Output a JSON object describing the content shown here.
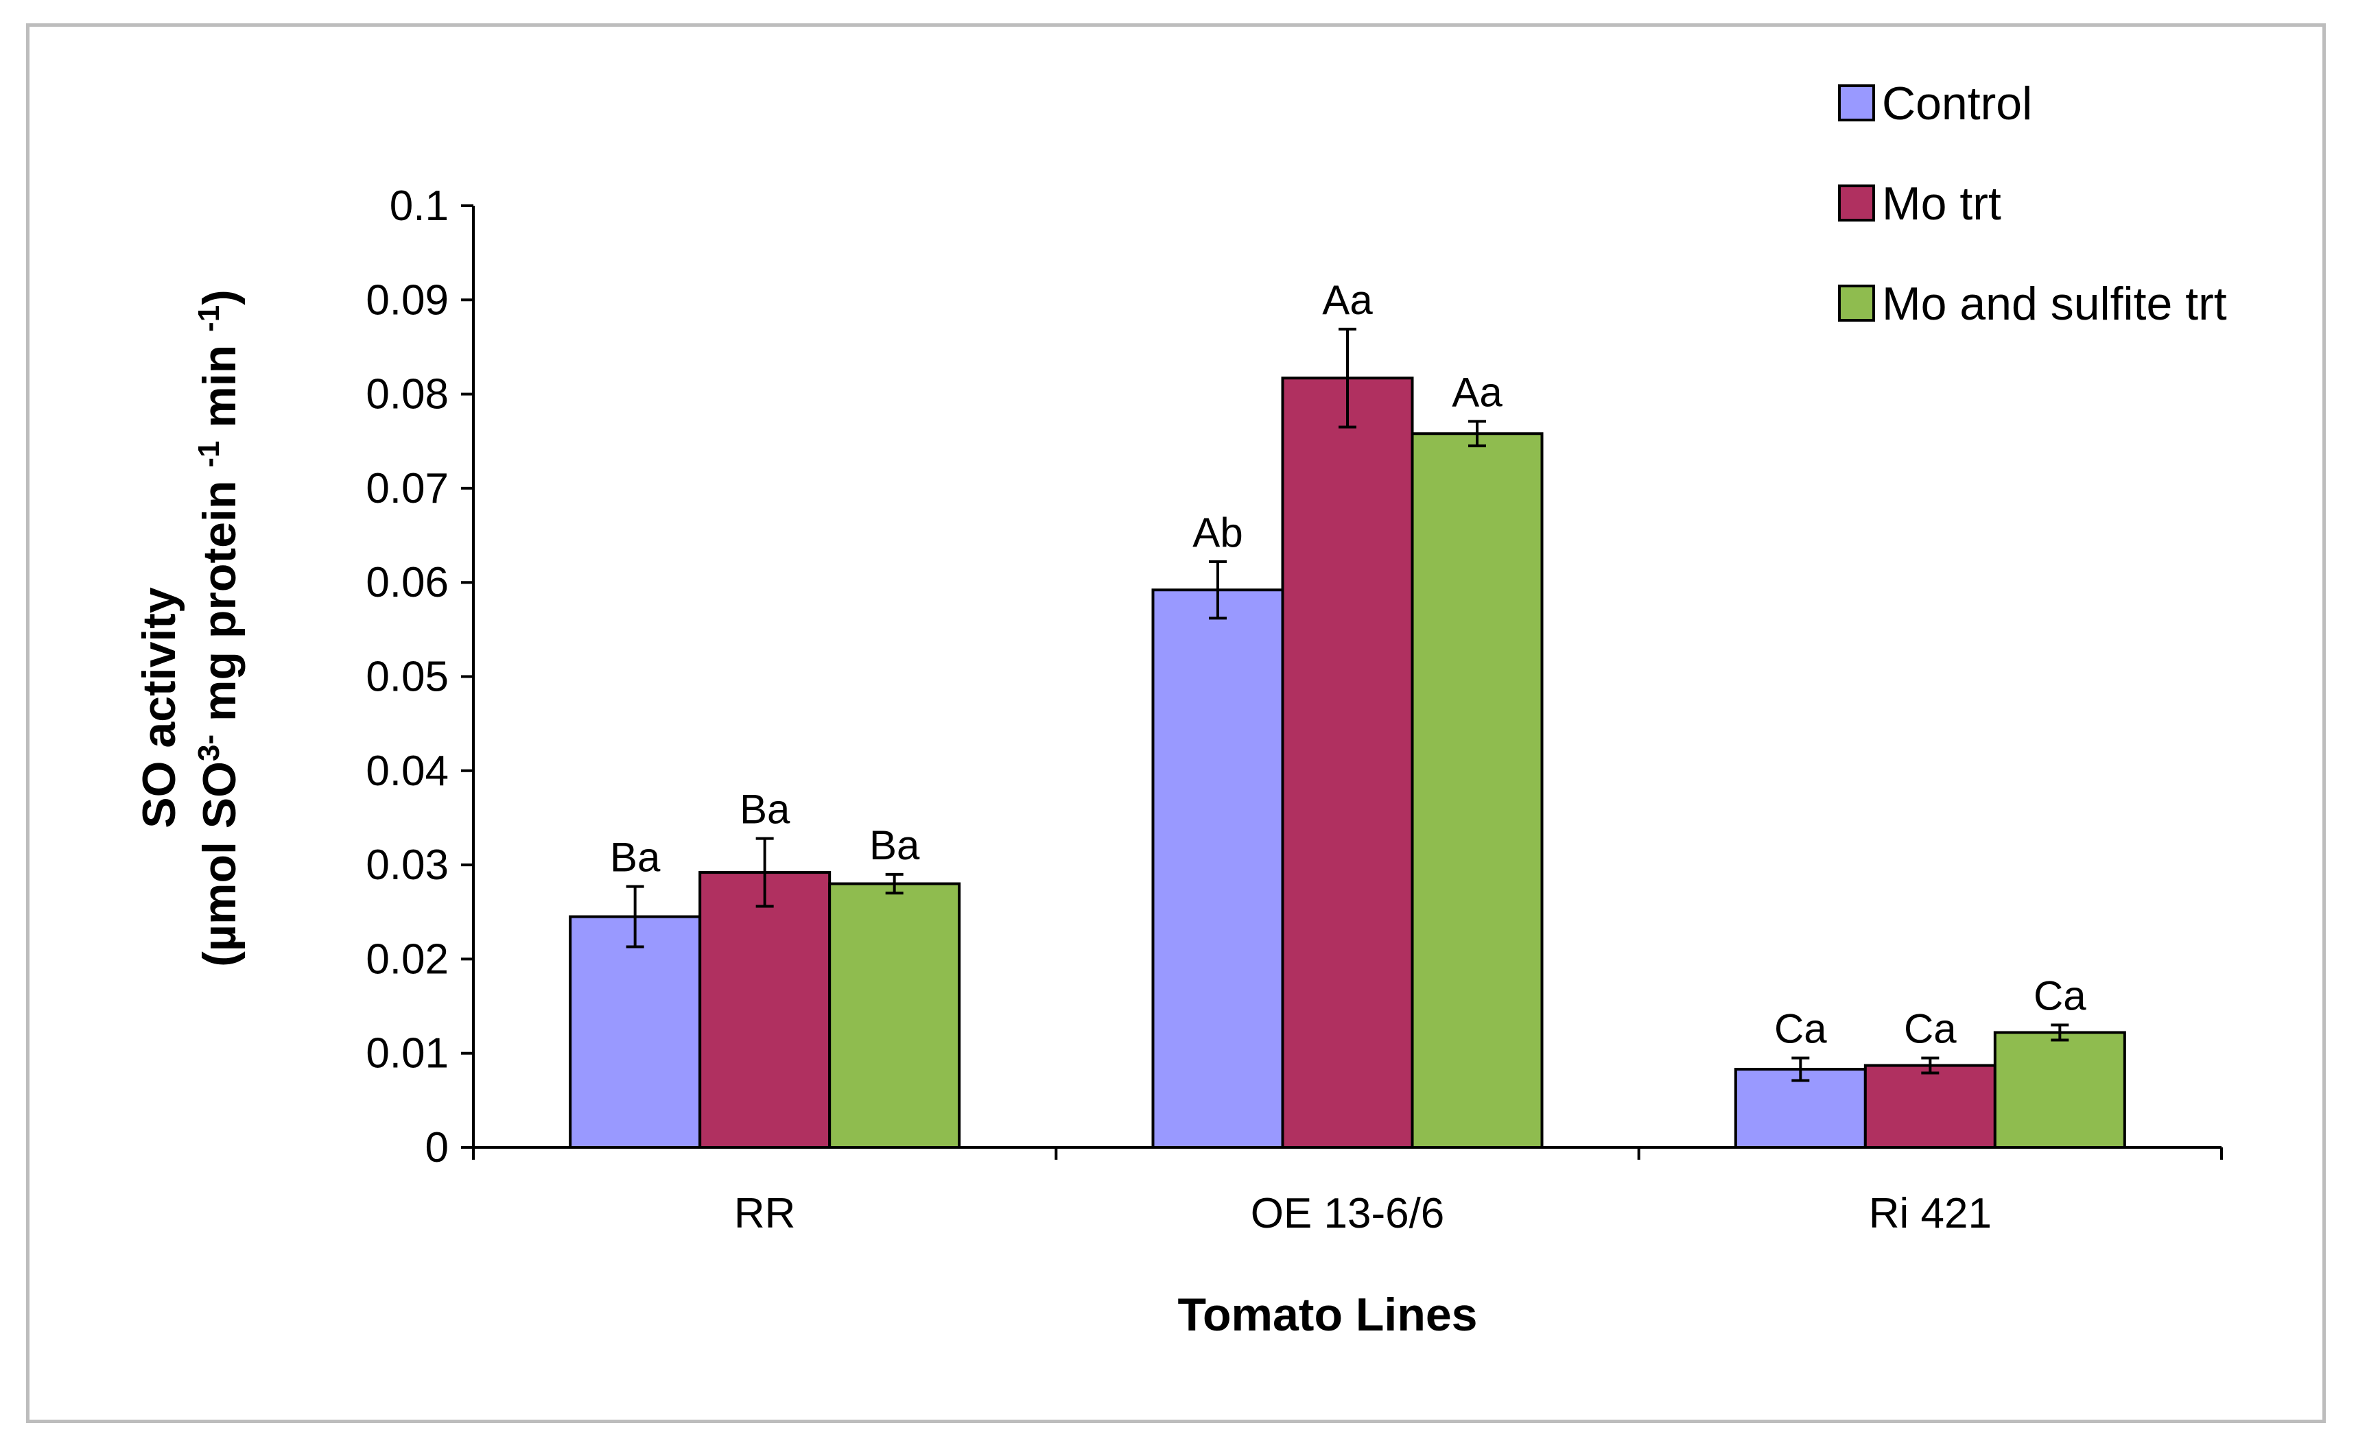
{
  "chart_data": {
    "type": "bar",
    "categories": [
      "RR",
      "OE 13-6/6",
      "Ri 421"
    ],
    "series": [
      {
        "name": "Control",
        "color": "#9999ff",
        "values": [
          0.0245,
          0.0592,
          0.0083
        ],
        "errors": [
          0.0032,
          0.003,
          0.0012
        ],
        "labels": [
          "Ba",
          "Ab",
          "Ca"
        ]
      },
      {
        "name": "Mo trt",
        "color": "#b03060",
        "values": [
          0.0292,
          0.0817,
          0.0087
        ],
        "errors": [
          0.0036,
          0.0052,
          0.0008
        ],
        "labels": [
          "Ba",
          "Aa",
          "Ca"
        ]
      },
      {
        "name": "Mo and sulfite trt",
        "color": "#8fbc4f",
        "values": [
          0.028,
          0.0758,
          0.0122
        ],
        "errors": [
          0.001,
          0.0013,
          0.0008
        ],
        "labels": [
          "Ba",
          "Aa",
          "Ca"
        ]
      }
    ],
    "y_ticks": [
      "0",
      "0.01",
      "0.02",
      "0.03",
      "0.04",
      "0.05",
      "0.06",
      "0.07",
      "0.08",
      "0.09",
      "0.1"
    ],
    "ylim": [
      0,
      0.1
    ],
    "ylabel_line1": "SO activity",
    "ylabel_line2_parts": [
      "(µmol SO",
      "3-",
      " mg protein ",
      "-1",
      " min ",
      "-1",
      ")"
    ],
    "xlabel": "Tomato Lines",
    "legend_position": "top-right",
    "grid": false
  }
}
